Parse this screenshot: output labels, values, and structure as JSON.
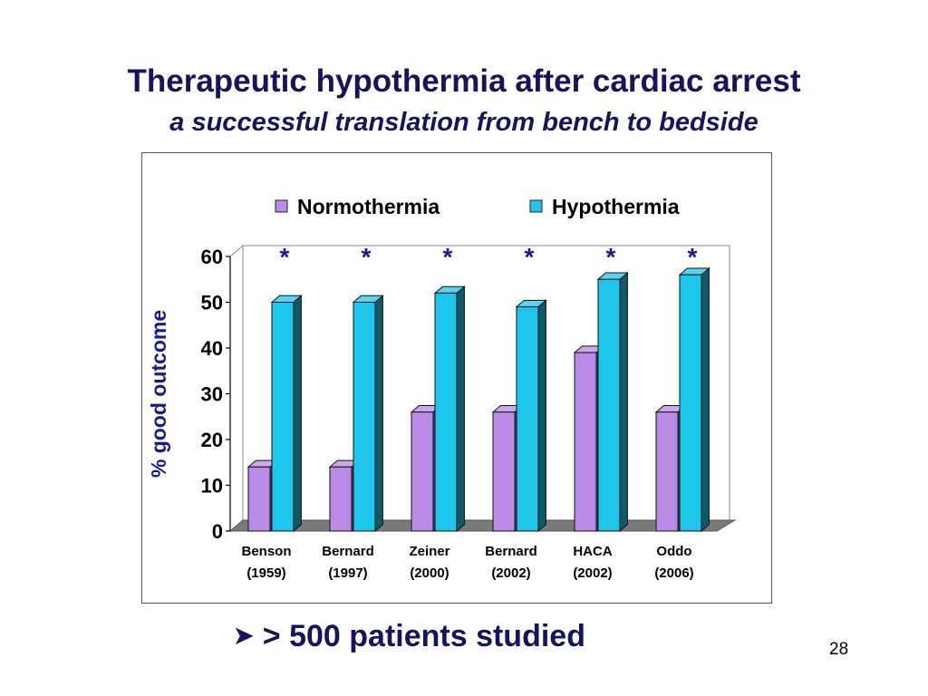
{
  "slide": {
    "title": "Therapeutic hypothermia after cardiac arrest",
    "subtitle": "a successful translation from bench to bedside",
    "bullet_icon": "arrow-bullet-icon",
    "bullet_text": "> 500 patients studied",
    "page_number": "28"
  },
  "chart_data": {
    "type": "bar",
    "categories": [
      "Benson",
      "Bernard",
      "Zeiner",
      "Bernard",
      "HACA",
      "Oddo"
    ],
    "category_years": [
      "(1959)",
      "(1997)",
      "(2000)",
      "(2002)",
      "(2002)",
      "(2006)"
    ],
    "series": [
      {
        "name": "Normothermia",
        "color": "#b98be6",
        "values": [
          14,
          14,
          26,
          26,
          39,
          26
        ]
      },
      {
        "name": "Hypothermia",
        "color": "#1ec6ec",
        "values": [
          50,
          50,
          52,
          49,
          55,
          56
        ]
      }
    ],
    "significance_marker": "*",
    "significance": [
      true,
      true,
      true,
      true,
      true,
      true
    ],
    "title": "",
    "xlabel": "",
    "ylabel": "% good outcome",
    "ylim": [
      0,
      60
    ],
    "yticks": [
      "0",
      "10",
      "20",
      "30",
      "40",
      "50",
      "60"
    ],
    "grid": false,
    "legend_position": "top",
    "style": "3d"
  }
}
